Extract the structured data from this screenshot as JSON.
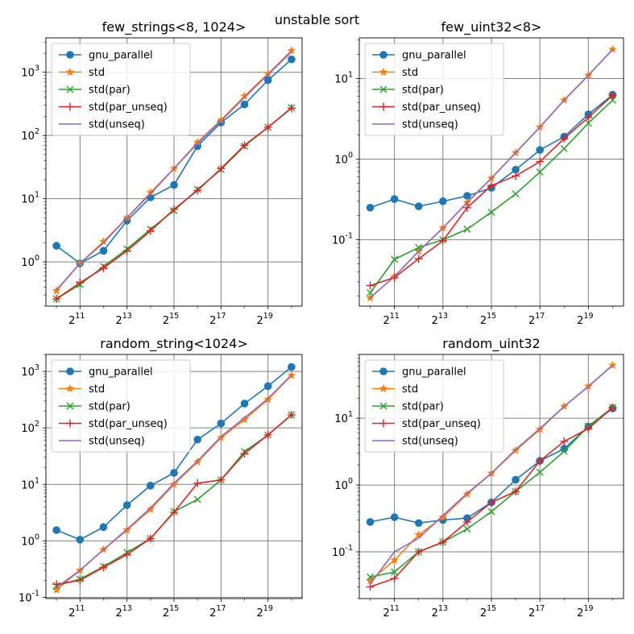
{
  "title": "unstable sort",
  "colors": {
    "gnu_parallel": "#1f77b4",
    "std": "#ff7f0e",
    "std(par)": "#2ca02c",
    "std(par_unseq)": "#d62728",
    "std(unseq)": "#9467bd"
  },
  "chart_data": [
    {
      "type": "line",
      "title": "few_strings<8, 1024>",
      "xscale": "log2",
      "yscale": "log10",
      "x_exponents": [
        10,
        11,
        12,
        13,
        14,
        15,
        16,
        17,
        18,
        19,
        20
      ],
      "xtick_exponents": [
        11,
        13,
        15,
        17,
        19
      ],
      "xlim_exp": [
        9.55,
        20.45
      ],
      "ylim": [
        0.2,
        3500
      ],
      "ytick_labels": [
        {
          "base": "10",
          "exp": "0",
          "value": 1
        },
        {
          "base": "10",
          "exp": "1",
          "value": 10
        },
        {
          "base": "10",
          "exp": "2",
          "value": 100
        },
        {
          "base": "10",
          "exp": "3",
          "value": 1000
        }
      ],
      "grid": true,
      "legend": "top-left",
      "series": [
        {
          "name": "gnu_parallel",
          "values": [
            1.8,
            0.95,
            1.5,
            4.5,
            10.5,
            16.5,
            68,
            160,
            310,
            750,
            1600
          ]
        },
        {
          "name": "std",
          "values": [
            0.35,
            0.95,
            2.1,
            5.0,
            12.5,
            30,
            78,
            175,
            420,
            950,
            2200
          ]
        },
        {
          "name": "std(par)",
          "values": [
            0.26,
            0.44,
            0.85,
            1.6,
            3.3,
            6.5,
            14,
            29,
            68,
            135,
            275
          ]
        },
        {
          "name": "std(par_unseq)",
          "values": [
            0.26,
            0.47,
            0.8,
            1.5,
            3.1,
            6.8,
            13.5,
            30,
            70,
            135,
            270
          ]
        },
        {
          "name": "std(unseq)",
          "values": [
            0.36,
            0.95,
            2.0,
            5.0,
            12.0,
            30,
            75,
            170,
            400,
            920,
            2100
          ]
        }
      ]
    },
    {
      "type": "line",
      "title": "few_uint32<8>",
      "xscale": "log2",
      "yscale": "log10",
      "x_exponents": [
        10,
        11,
        12,
        13,
        14,
        15,
        16,
        17,
        18,
        19,
        20
      ],
      "xtick_exponents": [
        11,
        13,
        15,
        17,
        19
      ],
      "xlim_exp": [
        9.55,
        20.45
      ],
      "ylim": [
        0.015,
        32
      ],
      "ytick_labels": [
        {
          "base": "10",
          "exp": "-1",
          "value": 0.1
        },
        {
          "base": "10",
          "exp": "0",
          "value": 1
        },
        {
          "base": "10",
          "exp": "1",
          "value": 10
        }
      ],
      "grid": true,
      "legend": "top-left",
      "series": [
        {
          "name": "gnu_parallel",
          "values": [
            0.25,
            0.32,
            0.26,
            0.3,
            0.35,
            0.44,
            0.74,
            1.3,
            1.9,
            3.6,
            6.3
          ]
        },
        {
          "name": "std",
          "values": [
            0.019,
            0.035,
            0.072,
            0.14,
            0.29,
            0.58,
            1.2,
            2.5,
            5.4,
            11,
            23
          ]
        },
        {
          "name": "std(par)",
          "values": [
            0.022,
            0.057,
            0.08,
            0.1,
            0.135,
            0.22,
            0.37,
            0.69,
            1.35,
            2.8,
            5.4
          ]
        },
        {
          "name": "std(par_unseq)",
          "values": [
            0.027,
            0.034,
            0.058,
            0.097,
            0.25,
            0.47,
            0.62,
            0.93,
            1.8,
            3.3,
            6.2
          ]
        },
        {
          "name": "std(unseq)",
          "values": [
            0.019,
            0.035,
            0.072,
            0.14,
            0.29,
            0.58,
            1.2,
            2.5,
            5.4,
            11,
            23
          ]
        }
      ]
    },
    {
      "type": "line",
      "title": "random_string<1024>",
      "xscale": "log2",
      "yscale": "log10",
      "x_exponents": [
        10,
        11,
        12,
        13,
        14,
        15,
        16,
        17,
        18,
        19,
        20
      ],
      "xtick_exponents": [
        11,
        13,
        15,
        17,
        19
      ],
      "xlim_exp": [
        9.55,
        20.45
      ],
      "ylim": [
        0.095,
        2000
      ],
      "ytick_labels": [
        {
          "base": "10",
          "exp": "-1",
          "value": 0.1
        },
        {
          "base": "10",
          "exp": "0",
          "value": 1
        },
        {
          "base": "10",
          "exp": "1",
          "value": 10
        },
        {
          "base": "10",
          "exp": "2",
          "value": 100
        },
        {
          "base": "10",
          "exp": "3",
          "value": 1000
        }
      ],
      "grid": true,
      "legend": "top-left",
      "series": [
        {
          "name": "gnu_parallel",
          "values": [
            1.55,
            1.05,
            1.75,
            4.3,
            9.5,
            16,
            62,
            120,
            270,
            550,
            1200
          ]
        },
        {
          "name": "std",
          "values": [
            0.135,
            0.3,
            0.7,
            1.55,
            3.6,
            10,
            25,
            67,
            140,
            320,
            850
          ]
        },
        {
          "name": "std(par)",
          "values": [
            0.16,
            0.21,
            0.35,
            0.62,
            1.1,
            3.3,
            5.4,
            12,
            38,
            75,
            170
          ]
        },
        {
          "name": "std(par_unseq)",
          "values": [
            0.17,
            0.2,
            0.34,
            0.57,
            1.1,
            3.2,
            10.5,
            12,
            35,
            75,
            170
          ]
        },
        {
          "name": "std(unseq)",
          "values": [
            0.15,
            0.3,
            0.7,
            1.6,
            3.8,
            10.5,
            26,
            70,
            150,
            330,
            870
          ]
        }
      ]
    },
    {
      "type": "line",
      "title": "random_uint32",
      "xscale": "log2",
      "yscale": "log10",
      "x_exponents": [
        10,
        11,
        12,
        13,
        14,
        15,
        16,
        17,
        18,
        19,
        20
      ],
      "xtick_exponents": [
        11,
        13,
        15,
        17,
        19
      ],
      "xlim_exp": [
        9.55,
        20.45
      ],
      "ylim": [
        0.02,
        90
      ],
      "ytick_labels": [
        {
          "base": "10",
          "exp": "-1",
          "value": 0.1
        },
        {
          "base": "10",
          "exp": "0",
          "value": 1
        },
        {
          "base": "10",
          "exp": "1",
          "value": 10
        }
      ],
      "grid": true,
      "legend": "top-left",
      "series": [
        {
          "name": "gnu_parallel",
          "values": [
            0.28,
            0.33,
            0.27,
            0.3,
            0.32,
            0.55,
            1.2,
            2.3,
            3.5,
            7.5,
            14
          ]
        },
        {
          "name": "std",
          "values": [
            0.037,
            0.075,
            0.18,
            0.33,
            0.73,
            1.5,
            3.3,
            6.8,
            15,
            30,
            62
          ]
        },
        {
          "name": "std(par)",
          "values": [
            0.042,
            0.05,
            0.1,
            0.14,
            0.22,
            0.4,
            0.8,
            1.55,
            3.2,
            7.6,
            14.5
          ]
        },
        {
          "name": "std(par_unseq)",
          "values": [
            0.03,
            0.04,
            0.1,
            0.14,
            0.28,
            0.55,
            0.8,
            2.3,
            4.5,
            7.0,
            14.5
          ]
        },
        {
          "name": "std(unseq)",
          "values": [
            0.033,
            0.1,
            0.16,
            0.35,
            0.75,
            1.5,
            3.4,
            7.0,
            15,
            30,
            62
          ]
        }
      ]
    }
  ]
}
